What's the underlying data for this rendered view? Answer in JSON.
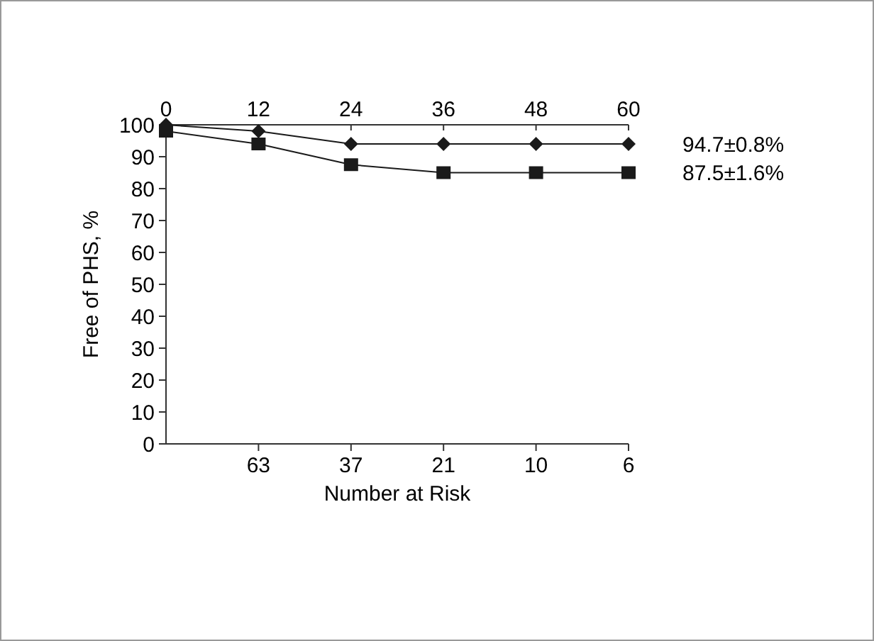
{
  "chart_data": {
    "type": "line",
    "xlabel": "Number at Risk",
    "ylabel": "Free of PHS, %",
    "xlim": [
      0,
      60
    ],
    "xticks": [
      0,
      12,
      24,
      36,
      48,
      60
    ],
    "ylim": [
      0,
      100
    ],
    "yticks": [
      0,
      10,
      20,
      30,
      40,
      50,
      60,
      70,
      80,
      90,
      100
    ],
    "annotations": [
      "63",
      "37",
      "21",
      "10",
      "6"
    ],
    "x": [
      0,
      12,
      24,
      36,
      48,
      60
    ],
    "series": [
      {
        "name": "94.7±0.8%",
        "color": "#1a1a1a",
        "marker": "diamond",
        "values": [
          100,
          98,
          94,
          94,
          94,
          94
        ]
      },
      {
        "name": "87.5±1.6%",
        "color": "#1a1a1a",
        "marker": "square",
        "values": [
          98,
          94,
          87.5,
          85,
          85,
          85
        ]
      }
    ],
    "grid": false
  }
}
